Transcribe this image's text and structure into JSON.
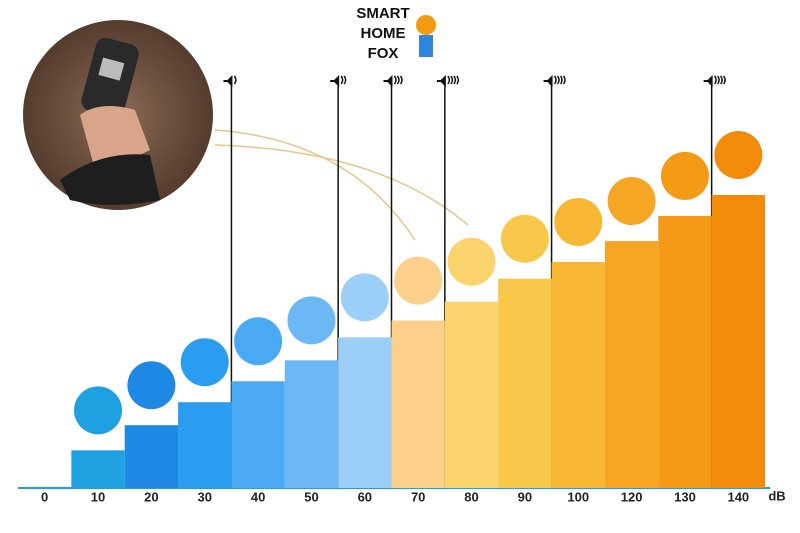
{
  "logo": [
    "SMART",
    "HOME",
    "FOX"
  ],
  "chart_data": {
    "type": "bar",
    "unit": "dB",
    "categories": [
      "0",
      "10",
      "20",
      "30",
      "40",
      "50",
      "60",
      "70",
      "80",
      "90",
      "100",
      "120",
      "130",
      "140"
    ],
    "values": [
      0,
      18,
      30,
      41,
      51,
      61,
      72,
      80,
      89,
      100,
      108,
      118,
      130,
      140
    ],
    "colors": [
      "#1da1e0",
      "#1da1e0",
      "#1e88e5",
      "#2a9df0",
      "#4aa9f3",
      "#6cb8f5",
      "#9ccff8",
      "#fbd08a",
      "#fcd46e",
      "#f9c84a",
      "#f7b733",
      "#f6a623",
      "#f49a16",
      "#f28a0a"
    ],
    "ylim": [
      0,
      140
    ]
  }
}
